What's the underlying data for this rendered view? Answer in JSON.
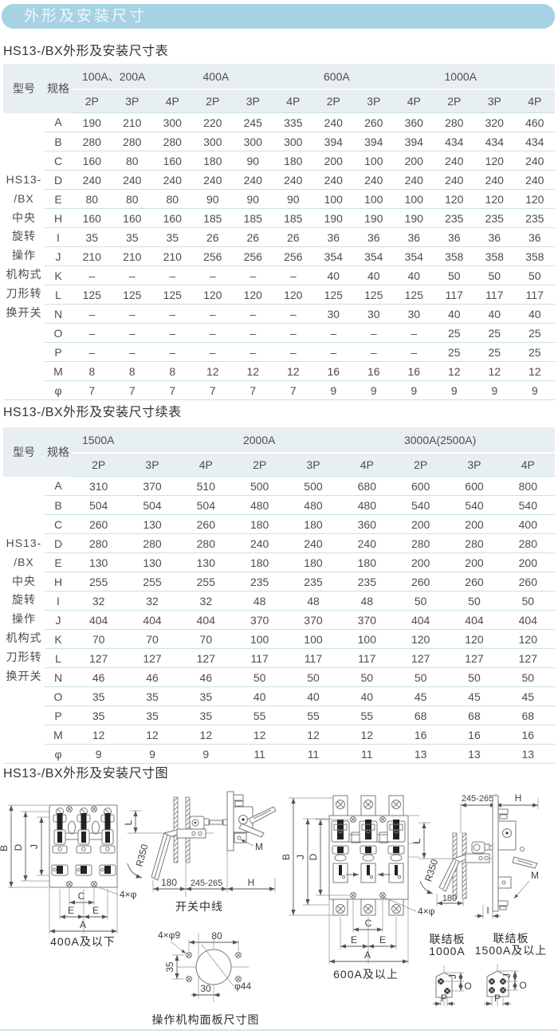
{
  "page": {
    "banner_title": "外形及安装尺寸",
    "section1_title": "HS13-/BX外形及安装尺寸表",
    "section2_title": "HS13-/BX外形及安装尺寸续表",
    "section3_title": "HS13-/BX外形及安装尺寸图"
  },
  "colors": {
    "banner": "#a6d2e4",
    "table_header_bg": "#e8eff2",
    "row_line": "#c9e1ea",
    "text": "#4d4d4d"
  },
  "table1": {
    "col_model": "型号",
    "col_spec": "规格",
    "model_lines": [
      "HS13-",
      "/BX",
      "中央",
      "旋转",
      "操作",
      "机构式",
      "刀形转",
      "换开关"
    ],
    "groups": [
      "100A、200A",
      "400A",
      "600A",
      "1000A"
    ],
    "subcols": [
      "2P",
      "3P",
      "4P",
      "2P",
      "3P",
      "4P",
      "2P",
      "3P",
      "4P",
      "2P",
      "3P",
      "4P"
    ],
    "rows": [
      {
        "dim": "A",
        "values": [
          "190",
          "210",
          "300",
          "220",
          "245",
          "335",
          "240",
          "260",
          "360",
          "280",
          "320",
          "460"
        ]
      },
      {
        "dim": "B",
        "values": [
          "280",
          "280",
          "280",
          "300",
          "300",
          "300",
          "394",
          "394",
          "394",
          "434",
          "434",
          "434"
        ]
      },
      {
        "dim": "C",
        "values": [
          "160",
          "80",
          "160",
          "180",
          "90",
          "180",
          "200",
          "100",
          "200",
          "240",
          "120",
          "240"
        ]
      },
      {
        "dim": "D",
        "values": [
          "240",
          "240",
          "240",
          "240",
          "240",
          "240",
          "240",
          "240",
          "240",
          "240",
          "240",
          "240"
        ]
      },
      {
        "dim": "E",
        "values": [
          "80",
          "80",
          "80",
          "90",
          "90",
          "90",
          "100",
          "100",
          "100",
          "120",
          "120",
          "120"
        ]
      },
      {
        "dim": "H",
        "values": [
          "160",
          "160",
          "160",
          "185",
          "185",
          "185",
          "190",
          "190",
          "190",
          "235",
          "235",
          "235"
        ]
      },
      {
        "dim": "I",
        "values": [
          "35",
          "35",
          "35",
          "26",
          "26",
          "26",
          "36",
          "36",
          "36",
          "36",
          "36",
          "36"
        ]
      },
      {
        "dim": "J",
        "values": [
          "210",
          "210",
          "210",
          "256",
          "256",
          "256",
          "354",
          "354",
          "354",
          "358",
          "358",
          "358"
        ]
      },
      {
        "dim": "K",
        "values": [
          "–",
          "–",
          "–",
          "–",
          "–",
          "–",
          "40",
          "40",
          "40",
          "50",
          "50",
          "50"
        ]
      },
      {
        "dim": "L",
        "values": [
          "125",
          "125",
          "125",
          "120",
          "120",
          "120",
          "125",
          "125",
          "125",
          "117",
          "117",
          "117"
        ]
      },
      {
        "dim": "N",
        "values": [
          "–",
          "–",
          "–",
          "–",
          "–",
          "–",
          "30",
          "30",
          "30",
          "40",
          "40",
          "40"
        ]
      },
      {
        "dim": "O",
        "values": [
          "–",
          "–",
          "–",
          "–",
          "–",
          "–",
          "–",
          "–",
          "–",
          "25",
          "25",
          "25"
        ]
      },
      {
        "dim": "P",
        "values": [
          "–",
          "–",
          "–",
          "–",
          "–",
          "–",
          "–",
          "–",
          "–",
          "25",
          "25",
          "25"
        ]
      },
      {
        "dim": "M",
        "values": [
          "8",
          "8",
          "8",
          "12",
          "12",
          "12",
          "16",
          "16",
          "16",
          "12",
          "12",
          "12"
        ]
      },
      {
        "dim": "φ",
        "values": [
          "7",
          "7",
          "7",
          "7",
          "7",
          "7",
          "9",
          "9",
          "9",
          "9",
          "9",
          "9"
        ]
      }
    ]
  },
  "table2": {
    "col_model": "型号",
    "col_spec": "规格",
    "model_lines": [
      "HS13-",
      "/BX",
      "中央",
      "旋转",
      "操作",
      "机构式",
      "刀形转",
      "换开关"
    ],
    "groups": [
      "1500A",
      "2000A",
      "3000A(2500A)"
    ],
    "subcols": [
      "2P",
      "3P",
      "4P",
      "2P",
      "3P",
      "4P",
      "2P",
      "3P",
      "4P"
    ],
    "rows": [
      {
        "dim": "A",
        "values": [
          "310",
          "370",
          "510",
          "500",
          "500",
          "680",
          "600",
          "600",
          "800"
        ]
      },
      {
        "dim": "B",
        "values": [
          "504",
          "504",
          "504",
          "480",
          "480",
          "480",
          "540",
          "540",
          "540"
        ]
      },
      {
        "dim": "C",
        "values": [
          "260",
          "130",
          "260",
          "180",
          "180",
          "360",
          "200",
          "200",
          "400"
        ]
      },
      {
        "dim": "D",
        "values": [
          "280",
          "280",
          "280",
          "240",
          "240",
          "240",
          "280",
          "280",
          "280"
        ]
      },
      {
        "dim": "E",
        "values": [
          "130",
          "130",
          "130",
          "180",
          "180",
          "180",
          "200",
          "200",
          "200"
        ]
      },
      {
        "dim": "H",
        "values": [
          "255",
          "255",
          "255",
          "235",
          "235",
          "235",
          "260",
          "260",
          "260"
        ]
      },
      {
        "dim": "I",
        "values": [
          "32",
          "32",
          "32",
          "48",
          "48",
          "48",
          "50",
          "50",
          "50"
        ]
      },
      {
        "dim": "J",
        "values": [
          "404",
          "404",
          "404",
          "370",
          "370",
          "370",
          "404",
          "404",
          "404"
        ]
      },
      {
        "dim": "K",
        "values": [
          "70",
          "70",
          "70",
          "100",
          "100",
          "100",
          "120",
          "120",
          "120"
        ]
      },
      {
        "dim": "L",
        "values": [
          "127",
          "127",
          "127",
          "117",
          "117",
          "117",
          "127",
          "127",
          "127"
        ]
      },
      {
        "dim": "N",
        "values": [
          "46",
          "46",
          "46",
          "50",
          "50",
          "50",
          "50",
          "50",
          "50"
        ]
      },
      {
        "dim": "O",
        "values": [
          "35",
          "35",
          "35",
          "40",
          "40",
          "40",
          "45",
          "45",
          "45"
        ]
      },
      {
        "dim": "P",
        "values": [
          "35",
          "35",
          "35",
          "55",
          "55",
          "55",
          "68",
          "68",
          "68"
        ]
      },
      {
        "dim": "M",
        "values": [
          "12",
          "12",
          "12",
          "12",
          "12",
          "12",
          "16",
          "16",
          "16"
        ]
      },
      {
        "dim": "φ",
        "values": [
          "9",
          "9",
          "9",
          "11",
          "11",
          "11",
          "13",
          "13",
          "13"
        ]
      }
    ]
  },
  "drawings": {
    "front_small": {
      "caption": "400A及以下",
      "dims": {
        "B": "B",
        "D": "D",
        "J": "J",
        "C": "C",
        "E": "E",
        "A": "A",
        "holes": "4×φ"
      }
    },
    "side_small": {
      "caption": "开关中线",
      "dims": {
        "L": "L",
        "R": "R350",
        "d180": "180",
        "d245": "245-265",
        "H": "H",
        "M": "M"
      }
    },
    "front_large": {
      "caption": "600A及以上",
      "dims": {
        "B": "B",
        "J": "J",
        "D": "D",
        "C": "C",
        "E": "E",
        "A": "A",
        "holes": "4×φ"
      }
    },
    "side_large": {
      "dims": {
        "d245": "245-265",
        "H": "H",
        "L": "L",
        "R": "R350",
        "d180": "180",
        "M": "M",
        "I": "I"
      }
    },
    "panel": {
      "caption": "操作机构面板尺寸图",
      "dims": {
        "holes": "4×φ9",
        "d80": "80",
        "d35": "35",
        "d30": "30",
        "d44": "φ44"
      }
    },
    "plate1": {
      "label_line1": "联结板",
      "label_line2": "1000A",
      "dims": {
        "J": "J",
        "O": "O",
        "P": "P"
      }
    },
    "plate2": {
      "label_line1": "联结板",
      "label_line2": "1500A及以上",
      "dims": {
        "J": "J",
        "O": "O",
        "P": "P"
      }
    }
  }
}
